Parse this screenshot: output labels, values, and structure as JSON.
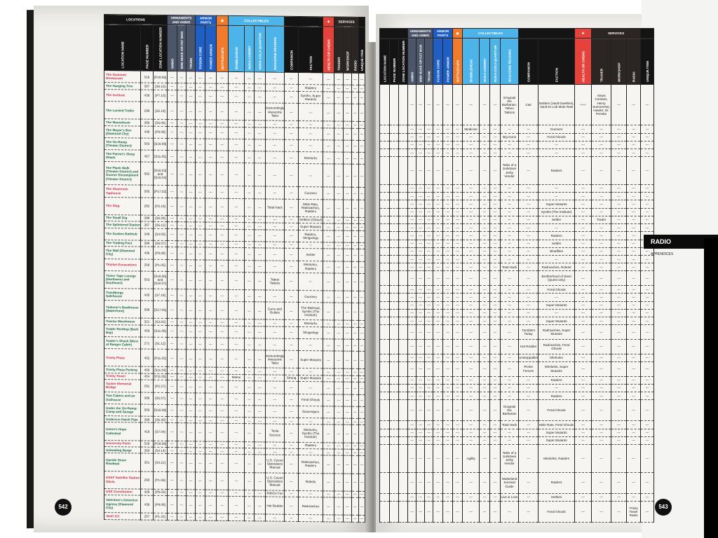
{
  "empty_marker": "—",
  "left_page": {
    "page_number": "542",
    "groups": {
      "locations": "LOCATIONS",
      "armaments": "ARMAMENTS AND AMMO",
      "armor": "ARMOR PARTS",
      "collectibles": "COLLECTIBLES",
      "services": "SERVICES"
    },
    "columns": [
      "LOCATION NAME",
      "PAGE NUMBER",
      "ZONE LOCATION NUMBER",
      "AMMO",
      "MINI NUKE OR FAT MAN",
      "TRUNK",
      "FUSION CORE",
      "POWER ARMOR",
      "BOTTLECAPS",
      "BOBBLEHEAD",
      "NUKA-CHERRY",
      "NUKA-COLA QUANTUM",
      "MAGAZINE READING",
      "COMPANION",
      "FACTION",
      "HEALTH OR CHEMS",
      "TRADER",
      "WORKSHOP",
      "RADIO",
      "UNIQUE ITEM"
    ],
    "rows": [
      {
        "name": "The Gwinnett Restaurant",
        "page": "516",
        "zone": "[P18.06]",
        "red": true
      },
      {
        "name": "The Hanging Tree",
        "page": "397",
        "zone": "[S6.15]",
        "faction": "Raiders"
      },
      {
        "name": "The Institute",
        "page": "439",
        "zone": "[P7.10]",
        "red": true,
        "faction": "Synths, Super Mutants"
      },
      {
        "name": "The Locked Trailer",
        "page": "298",
        "zone": "[S2.18]",
        "reading": "Astoundingly Awesome Tales"
      },
      {
        "name": "The Mausoleum",
        "page": "366",
        "zone": "[S5.05]"
      },
      {
        "name": "The Mayor's Box (Diamond City)",
        "page": "438",
        "zone": "[P9.08]"
      },
      {
        "name": "The On-Ramp (Theater District)",
        "page": "503",
        "zone": "[S16.09]"
      },
      {
        "name": "The Patriot's Sleep Shack",
        "page": "457",
        "zone": "[S11.05]",
        "faction": "Mirelurks"
      },
      {
        "name": "The Plank Walk (Theater District) and Gunner Encampment (Theater District)",
        "page": "502",
        "zone": "[S16.03] and [S16.04]"
      },
      {
        "name": "The Shamrock Taphouse",
        "page": "505",
        "zone": "[P17.02]",
        "red": true,
        "faction": "Gunners"
      },
      {
        "name": "The Slog",
        "page": "282",
        "zone": "[P2.18]",
        "red": true,
        "reading": "Total Hack",
        "faction": "Mole Rats, Radroaches, Raiders"
      },
      {
        "name": "The Small Dig",
        "page": "398",
        "zone": "[S6.28]",
        "faction": "Settlers (Ghoul)"
      },
      {
        "name": "The Splintered Station",
        "page": "367",
        "zone": "[S5.12]",
        "faction": "Super Mutants"
      },
      {
        "name": "The Sunken Bathtub",
        "page": "349",
        "zone": "[S4.05]",
        "faction": "Raiders, Stingwings"
      },
      {
        "name": "The Trading Post",
        "page": "396",
        "zone": "[S6.07]"
      },
      {
        "name": "The Wall (Diamond City)",
        "page": "436",
        "zone": "[P9.08]",
        "faction": "Settler"
      },
      {
        "name": "Thicket Excavations",
        "page": "259",
        "zone": "[P1.05]",
        "red": true,
        "faction": "Mirelurks, Raiders"
      },
      {
        "name": "Ticker Tape Lounge (Northwest and Southeast)",
        "page": "503",
        "zone": "[S16.06] and [S16.07]",
        "reading": "Taboo Tattoos"
      },
      {
        "name": "Trandberge Safehouse",
        "page": "420",
        "zone": "[S7.18]",
        "faction": "Gunners"
      },
      {
        "name": "Tinkerer's Boathouse (Waterfront)",
        "page": "508",
        "zone": "[S17.05]",
        "reading": "Guns and Bullets",
        "faction": "The Railroad, Synths (The Institute)"
      },
      {
        "name": "Tractor Warehouse",
        "page": "321",
        "zone": "[S3.02]",
        "faction": "Mirelurks"
      },
      {
        "name": "Trader Rooftop (Back Bay)",
        "page": "459",
        "zone": "[S11.06]",
        "faction": "Stingwings"
      },
      {
        "name": "Trader's Shack (West of Ranger Cabin)",
        "page": "271",
        "zone": "[S1.12]"
      },
      {
        "name": "Trinity Plaza",
        "page": "452",
        "zone": "[P11.02]",
        "red": true,
        "reading": "Astoundingly Awesome Tales",
        "faction": "Super Mutants"
      },
      {
        "name": "Trinity Plaza Parking",
        "page": "450",
        "zone": "[S11.03]"
      },
      {
        "name": "Trinity Tower",
        "page": "454",
        "zone": "[P11.05]",
        "red": true,
        "bobblehead": "Melee",
        "companion": "Strong",
        "faction": "Super Mutants"
      },
      {
        "name": "Tucker Memorial Bridge",
        "page": "291",
        "zone": "[P2.27]",
        "red": true
      },
      {
        "name": "Two Cabins and an Outhouse",
        "page": "366",
        "zone": "[S5.07]",
        "faction": "Feral Ghouls"
      },
      {
        "name": "Under the On-Ramp: Camp and Garage",
        "page": "500",
        "zone": "[S16.08]",
        "faction": "Scavengers"
      },
      {
        "name": "Underrun Hatch Pipe",
        "page": "399",
        "zone": "[S6.30]"
      },
      {
        "name": "Union's Hope Cathedral",
        "page": "418",
        "zone": "[S7.04]",
        "reading": "Tesla Science",
        "faction": "Mirelurks, Synths (The Institute)"
      },
      {
        "name": "University Point",
        "page": "518",
        "zone": "[P18.09]",
        "red": true,
        "faction": "Raiders"
      },
      {
        "name": "Unloading Barge",
        "page": "350",
        "zone": "[S4.14]"
      },
      {
        "name": "Upside Down Rowboat",
        "page": "351",
        "zone": "[S4.21]",
        "reading": "U.S. Covert Operations Manual",
        "faction": "Radroaches, Raiders"
      },
      {
        "name": "USAF Satellite Station Olivia",
        "page": "260",
        "zone": "[P1.06]",
        "red": true,
        "reading": "U.S. Covert Operations Manual",
        "faction": "Robots"
      },
      {
        "name": "USS Constitution",
        "page": "426",
        "zone": "[P8.03]",
        "red": true,
        "reading": "RobCo Fun"
      },
      {
        "name": "Valentine's Detective Agency (Diamond City)",
        "page": "436",
        "zone": "[P9.08]",
        "reading": "Hot Rodder",
        "faction": "Radroaches"
      },
      {
        "name": "Vault 111",
        "page": "257",
        "zone": "[P1.31]",
        "red": true
      }
    ]
  },
  "right_page": {
    "page_number": "543",
    "tab_label": "RADIO",
    "section_label": "APPENDICES",
    "rows": [
      {
        "reading": "Grognak the Barbarian, Taboo Tattoos",
        "companion": "Cait",
        "faction": "Settlers (Vault Dwellers), Vault 81 Lab Mole Rats",
        "health": "+++",
        "trader": "Alexis Combes, Henry Summerset, Hawke, Dr. Penske"
      },
      {
        "bobblehead": "Medicine",
        "faction": "Gunners"
      },
      {
        "reading": "Big Guns",
        "faction": "Feral Ghouls"
      },
      {},
      {},
      {
        "reading": "Tales of a Junktown Jerky Vendor",
        "faction": "Raiders"
      },
      {},
      {},
      {
        "faction": "Super Mutants"
      },
      {
        "faction": "Synths (The Institute)"
      },
      {
        "faction": "Settler",
        "trader": "Trader"
      },
      {},
      {
        "faction": "Raiders"
      },
      {
        "faction": "Settler"
      },
      {
        "faction": "Bloatflies"
      },
      {},
      {
        "reading": "Total Hack",
        "faction": "Radroaches, Robots"
      },
      {
        "faction": "Brotherhood of Steel (Quest only)"
      },
      {
        "faction": "Feral Ghouls"
      },
      {},
      {
        "faction": "Super Mutants"
      },
      {},
      {
        "faction": "Super Mutants"
      },
      {
        "companion": "Tumblers Today",
        "faction": "Radroaches, Super Mutants"
      },
      {
        "companion": "Hot Rodder",
        "faction": "Radroaches, Feral Ghouls"
      },
      {
        "companion": "Unstoppables",
        "faction": "Mirelurks"
      },
      {
        "companion": "Picket Fences",
        "faction": "Mirelurks, Super Mutants"
      },
      {
        "faction": "Raiders"
      },
      {},
      {
        "faction": "Raiders"
      },
      {
        "reading": "Grognak the Barbarian",
        "faction": "Feral Ghouls"
      },
      {
        "reading": "Total Hack",
        "faction": "Mole Rats, Feral Ghouls"
      },
      {
        "faction": "Super Mutants"
      },
      {
        "faction": "Super Mutants"
      },
      {
        "bobblehead": "Agility",
        "reading": "Tales of a Junktown Jerky Vendor",
        "faction": "Mirelurks, Raiders"
      },
      {
        "reading": "Wasteland Survival Guide",
        "faction": "Raiders"
      },
      {
        "reading": "Live & Love",
        "faction": "Settlers"
      },
      {
        "faction": "Feral Ghouls",
        "radio": "Trinity Tower Radio"
      }
    ]
  },
  "colors": {
    "armaments": "#4c566b",
    "armor": "#1f5fc4",
    "bottlecaps": "#f07b2c",
    "collectibles": "#4db4ea",
    "health": "#e5423b",
    "location_green": "#1d6b43",
    "location_red": "#c8324a"
  }
}
